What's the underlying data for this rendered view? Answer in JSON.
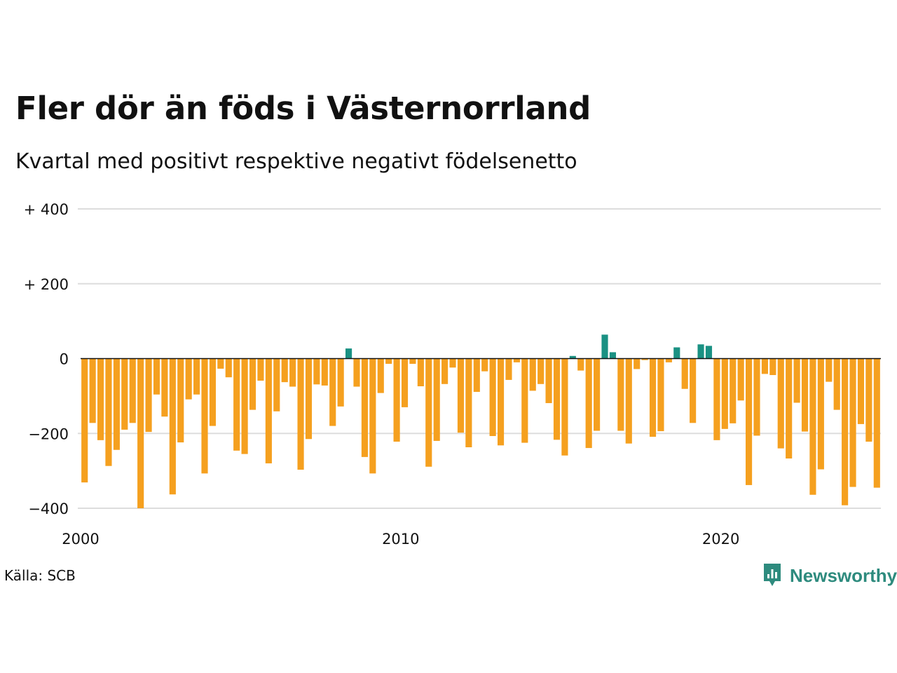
{
  "title": "Fler dör än föds i Västernorrland",
  "subtitle": "Kvartal med positivt respektive negativt födelsenetto",
  "source": "Källa: SCB",
  "brand": "Newsworthy",
  "colors": {
    "positive": "#1a9183",
    "negative": "#f5a01f",
    "grid": "#dddddd",
    "zero_line": "#111111",
    "brand": "#2e8b7e"
  },
  "chart_data": {
    "type": "bar",
    "title": "Fler dör än föds i Västernorrland",
    "subtitle": "Kvartal med positivt respektive negativt födelsenetto",
    "xlabel": "",
    "ylabel": "",
    "grid": true,
    "ylim": [
      -400,
      400
    ],
    "yticks": [
      {
        "value": 400,
        "label": "+ 400"
      },
      {
        "value": 200,
        "label": "+ 200"
      },
      {
        "value": 0,
        "label": "0"
      },
      {
        "value": -200,
        "label": "−200"
      },
      {
        "value": -400,
        "label": "−400"
      }
    ],
    "xticks": [
      {
        "value": 2000,
        "label": "2000"
      },
      {
        "value": 2010,
        "label": "2010"
      },
      {
        "value": 2020,
        "label": "2020"
      }
    ],
    "x_start": "2000 Q1",
    "values": [
      -331,
      -172,
      -218,
      -287,
      -244,
      -190,
      -172,
      -400,
      -196,
      -96,
      -155,
      -363,
      -224,
      -109,
      -96,
      -307,
      -180,
      -27,
      -50,
      -246,
      -255,
      -137,
      -59,
      -280,
      -141,
      -63,
      -75,
      -297,
      -215,
      -69,
      -72,
      -180,
      -128,
      27,
      -75,
      -263,
      -307,
      -92,
      -14,
      -222,
      -130,
      -14,
      -74,
      -289,
      -220,
      -68,
      -24,
      -198,
      -237,
      -89,
      -34,
      -207,
      -232,
      -57,
      -10,
      -225,
      -86,
      -68,
      -119,
      -217,
      -259,
      7,
      -32,
      -239,
      -193,
      64,
      17,
      -193,
      -227,
      -28,
      -4,
      -209,
      -194,
      -10,
      30,
      -81,
      -172,
      38,
      34,
      -218,
      -188,
      -173,
      -112,
      -338,
      -206,
      -41,
      -44,
      -240,
      -267,
      -118,
      -195,
      -364,
      -296,
      -62,
      -137,
      -392,
      -343,
      -175,
      -222,
      -345
    ]
  }
}
